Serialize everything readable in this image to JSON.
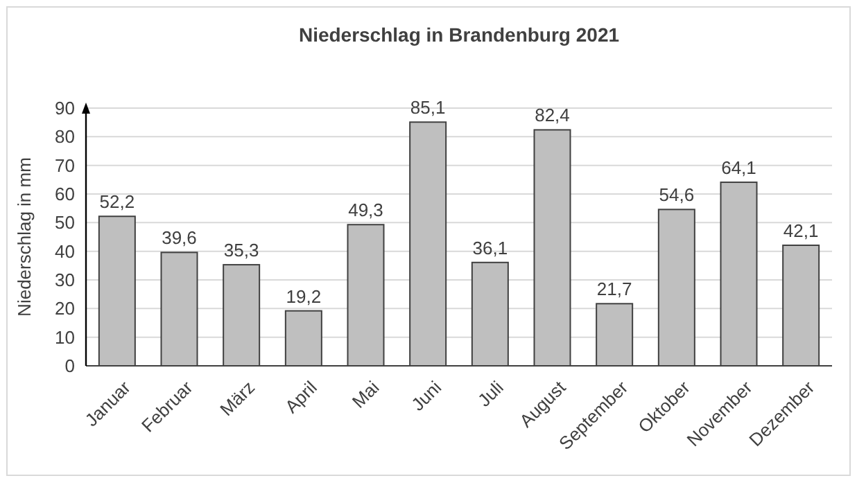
{
  "chart_data": {
    "type": "bar",
    "title": "Niederschlag in Brandenburg 2021",
    "ylabel": "Niederschlag in mm",
    "categories": [
      "Januar",
      "Februar",
      "März",
      "April",
      "Mai",
      "Juni",
      "Juli",
      "August",
      "September",
      "Oktober",
      "November",
      "Dezember"
    ],
    "values": [
      52.2,
      39.6,
      35.3,
      19.2,
      49.3,
      85.1,
      36.1,
      82.4,
      21.7,
      54.6,
      64.1,
      42.1
    ],
    "value_labels": [
      "52,2",
      "39,6",
      "35,3",
      "19,2",
      "49,3",
      "85,1",
      "36,1",
      "82,4",
      "21,7",
      "54,6",
      "64,1",
      "42,1"
    ],
    "color": "#bfbfbf",
    "ylim": [
      0,
      90
    ],
    "yticks": [
      0,
      10,
      20,
      30,
      40,
      50,
      60,
      70,
      80,
      90
    ],
    "grid": "y"
  }
}
